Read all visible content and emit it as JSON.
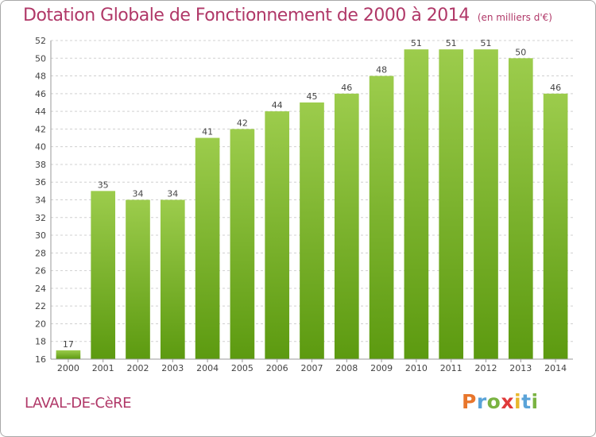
{
  "header": {
    "title": "Dotation Globale de Fonctionnement de 2000 à 2014",
    "unit": "(en milliers d'€)"
  },
  "footer": {
    "commune": "LAVAL-DE-CèRE"
  },
  "logo": {
    "text": "Proxiti",
    "letters": [
      {
        "char": "P",
        "color": "#e8762c"
      },
      {
        "char": "r",
        "color": "#5aa3d8"
      },
      {
        "char": "o",
        "color": "#7ab342"
      },
      {
        "char": "x",
        "color": "#e03a3a"
      },
      {
        "char": "i",
        "color": "#e8b82c"
      },
      {
        "char": "t",
        "color": "#5aa3d8"
      },
      {
        "char": "i",
        "color": "#7ab342"
      }
    ]
  },
  "colors": {
    "bar_top": "#9ccc4c",
    "bar_bottom": "#5c9a10",
    "grid": "#d0d0d0",
    "axis_text": "#444444",
    "label_text": "#444444"
  },
  "chart_data": {
    "type": "bar",
    "categories": [
      "2000",
      "2001",
      "2002",
      "2003",
      "2004",
      "2005",
      "2006",
      "2007",
      "2008",
      "2009",
      "2010",
      "2011",
      "2012",
      "2013",
      "2014"
    ],
    "values": [
      17,
      35,
      34,
      34,
      41,
      42,
      44,
      45,
      46,
      48,
      51,
      51,
      51,
      50,
      46
    ],
    "title": "Dotation Globale de Fonctionnement de 2000 à 2014",
    "ylim": [
      16,
      52
    ],
    "yticks": [
      16,
      18,
      20,
      22,
      24,
      26,
      28,
      30,
      32,
      34,
      36,
      38,
      40,
      42,
      44,
      46,
      48,
      50,
      52
    ],
    "grid": true,
    "data_labels": true
  }
}
